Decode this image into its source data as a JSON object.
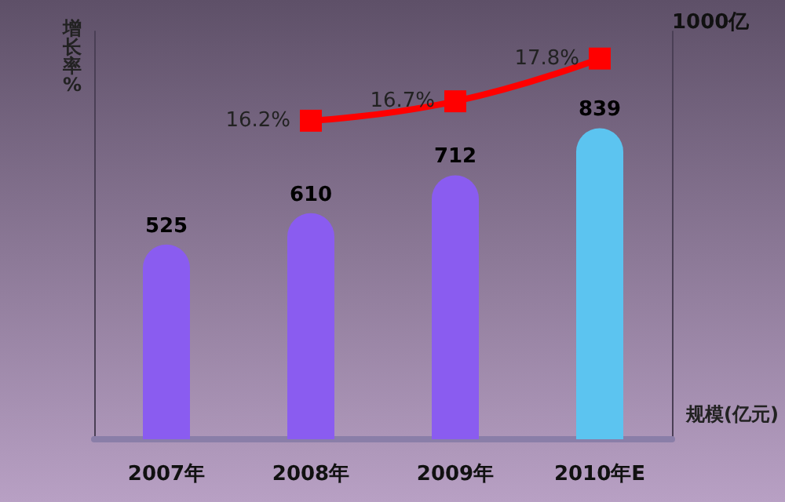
{
  "chart_data": {
    "type": "bar",
    "categories": [
      "2007年",
      "2008年",
      "2009年",
      "2010年E"
    ],
    "series": [
      {
        "colors": [
          "#8a5cf0",
          "#8a5cf0",
          "#8a5cf0",
          "#5cc4f0"
        ],
        "values": [
          525,
          610,
          712,
          839
        ]
      },
      {
        "type": "line",
        "axis": "y2",
        "color": "#ff0000",
        "values": [
          null,
          16.2,
          16.7,
          17.8
        ],
        "value_labels": [
          null,
          "16.2%",
          "16.7%",
          "17.8%"
        ],
        "marker": "square"
      }
    ],
    "ylabel": "规模(亿元)",
    "y2label": "增长率%",
    "annotations": [
      "1000亿"
    ],
    "ylim": [
      0,
      1100
    ],
    "y2lim": [
      8,
      18.5
    ],
    "data_labels": true,
    "tick_labels": "x"
  }
}
